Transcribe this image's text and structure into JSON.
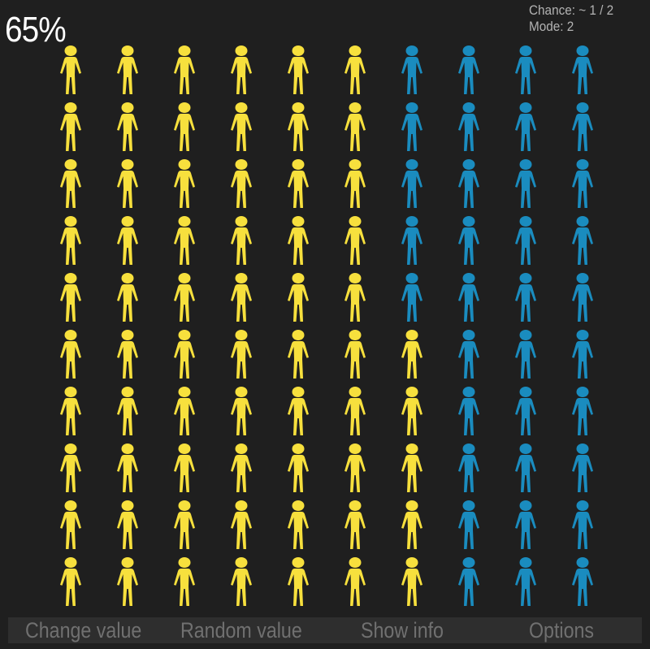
{
  "percent_label": "65%",
  "info": {
    "chance": "Chance: ~ 1 / 2",
    "mode": "Mode: 2"
  },
  "grid": {
    "columns": 10,
    "rows": 10,
    "column_counts": [
      10,
      10,
      10,
      10,
      10,
      10,
      5,
      0,
      0,
      0
    ],
    "highlight_color": "#f7e03d",
    "base_color": "#1a8cbf",
    "icon": "person-icon"
  },
  "toolbar": {
    "change_value": "Change value",
    "random_value": "Random value",
    "show_info": "Show info",
    "options": "Options"
  }
}
